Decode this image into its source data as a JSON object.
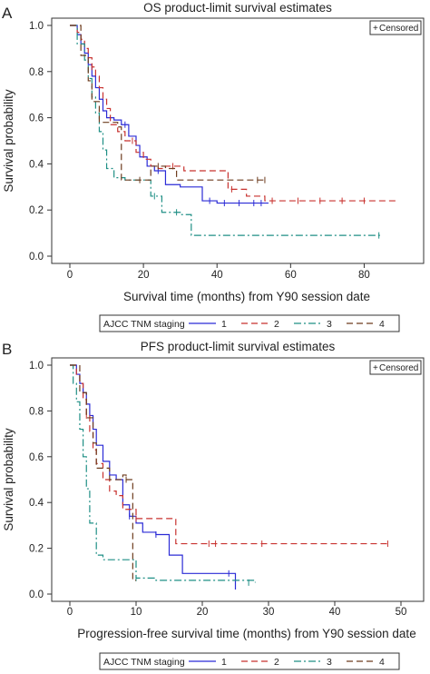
{
  "chart_data": [
    {
      "type": "line",
      "panel_label": "A",
      "title": "OS product-limit survival estimates",
      "xlabel": "Survival time (months) from Y90 session date",
      "ylabel": "Survival probability",
      "xlim": [
        0,
        90
      ],
      "ylim": [
        0,
        1
      ],
      "xticks": [
        "0",
        "20",
        "40",
        "60",
        "80"
      ],
      "yticks": [
        "0.0",
        "0.2",
        "0.4",
        "0.6",
        "0.8",
        "1.0"
      ],
      "censored_note": "Censored",
      "censored_marker": "+",
      "legend_title": "AJCC TNM staging",
      "legend_position": "bottom",
      "step": true,
      "series": [
        {
          "name": "1",
          "color": "#2b2bd6",
          "dash": "solid",
          "x": [
            0,
            2,
            3,
            4,
            5,
            6,
            7,
            8,
            9,
            10,
            12,
            14,
            16,
            18,
            19,
            21,
            23,
            26,
            30,
            36,
            40,
            54
          ],
          "y": [
            1.0,
            0.96,
            0.92,
            0.88,
            0.83,
            0.78,
            0.73,
            0.68,
            0.63,
            0.6,
            0.59,
            0.57,
            0.52,
            0.48,
            0.43,
            0.39,
            0.37,
            0.31,
            0.3,
            0.24,
            0.23,
            0.23
          ],
          "censored": [
            [
              15,
              0.57
            ],
            [
              24,
              0.37
            ],
            [
              38,
              0.24
            ],
            [
              42,
              0.23
            ],
            [
              46,
              0.23
            ],
            [
              50,
              0.23
            ],
            [
              52,
              0.23
            ]
          ]
        },
        {
          "name": "2",
          "color": "#c8322f",
          "dash": "long-dash",
          "x": [
            0,
            2,
            3,
            4,
            5,
            6,
            7,
            8,
            9,
            10,
            11,
            13,
            15,
            18,
            20,
            22,
            24,
            26,
            31,
            43,
            48,
            53,
            89
          ],
          "y": [
            1.0,
            0.97,
            0.94,
            0.9,
            0.86,
            0.82,
            0.78,
            0.73,
            0.68,
            0.64,
            0.57,
            0.54,
            0.5,
            0.45,
            0.42,
            0.39,
            0.38,
            0.39,
            0.37,
            0.29,
            0.26,
            0.24,
            0.24
          ],
          "censored": [
            [
              6,
              0.82
            ],
            [
              17,
              0.5
            ],
            [
              28,
              0.39
            ],
            [
              44,
              0.29
            ],
            [
              55,
              0.24
            ],
            [
              62,
              0.24
            ],
            [
              68,
              0.24
            ],
            [
              74,
              0.24
            ],
            [
              80,
              0.24
            ]
          ]
        },
        {
          "name": "3",
          "color": "#1f8f85",
          "dash": "dash-dot",
          "x": [
            0,
            2,
            4,
            5,
            6,
            7,
            8,
            9,
            10,
            12,
            15,
            22,
            25,
            30,
            33,
            85
          ],
          "y": [
            1.0,
            0.92,
            0.85,
            0.77,
            0.69,
            0.62,
            0.54,
            0.46,
            0.38,
            0.34,
            0.33,
            0.26,
            0.19,
            0.18,
            0.09,
            0.09
          ],
          "censored": [
            [
              23,
              0.26
            ],
            [
              29,
              0.19
            ],
            [
              84,
              0.09
            ]
          ]
        },
        {
          "name": "4",
          "color": "#6e3c1e",
          "dash": "long-dash",
          "x": [
            0,
            3,
            5,
            6,
            8,
            10,
            13,
            14,
            18,
            22,
            25,
            26,
            29,
            53
          ],
          "y": [
            1.0,
            0.87,
            0.76,
            0.67,
            0.58,
            0.58,
            0.56,
            0.33,
            0.33,
            0.39,
            0.39,
            0.38,
            0.33,
            0.33
          ],
          "censored": [
            [
              19,
              0.33
            ],
            [
              24,
              0.39
            ],
            [
              51,
              0.33
            ],
            [
              53,
              0.33
            ]
          ]
        }
      ]
    },
    {
      "type": "line",
      "panel_label": "B",
      "title": "PFS product-limit survival estimates",
      "xlabel": "Progression-free survival time (months) from Y90 session date",
      "ylabel": "Survival probability",
      "xlim": [
        0,
        50
      ],
      "ylim": [
        0,
        1
      ],
      "xticks": [
        "0",
        "10",
        "20",
        "30",
        "40",
        "50"
      ],
      "yticks": [
        "0.0",
        "0.2",
        "0.4",
        "0.6",
        "0.8",
        "1.0"
      ],
      "censored_note": "Censored",
      "censored_marker": "+",
      "legend_title": "AJCC TNM staging",
      "legend_position": "bottom",
      "step": true,
      "series": [
        {
          "name": "1",
          "color": "#2b2bd6",
          "dash": "solid",
          "x": [
            0,
            1,
            1.5,
            2,
            2.5,
            3,
            3.5,
            4,
            5,
            6,
            7,
            8,
            9,
            10,
            11,
            13,
            15,
            17,
            25
          ],
          "y": [
            1.0,
            0.96,
            0.92,
            0.88,
            0.83,
            0.78,
            0.72,
            0.65,
            0.58,
            0.52,
            0.5,
            0.39,
            0.34,
            0.31,
            0.27,
            0.26,
            0.17,
            0.09,
            0.02
          ],
          "censored": [
            [
              2,
              0.88
            ],
            [
              9,
              0.34
            ],
            [
              13,
              0.26
            ],
            [
              24,
              0.09
            ]
          ]
        },
        {
          "name": "2",
          "color": "#c8322f",
          "dash": "long-dash",
          "x": [
            0,
            1,
            1.5,
            2,
            2.5,
            3,
            3.5,
            4,
            5,
            6,
            7,
            8,
            10,
            11,
            16,
            48
          ],
          "y": [
            1.0,
            0.96,
            0.92,
            0.85,
            0.78,
            0.71,
            0.63,
            0.57,
            0.5,
            0.45,
            0.43,
            0.37,
            0.33,
            0.33,
            0.22,
            0.22
          ],
          "censored": [
            [
              2.5,
              0.78
            ],
            [
              10,
              0.33
            ],
            [
              21,
              0.22
            ],
            [
              22,
              0.22
            ],
            [
              29,
              0.22
            ],
            [
              48,
              0.22
            ]
          ]
        },
        {
          "name": "3",
          "color": "#1f8f85",
          "dash": "dash-dot",
          "x": [
            0,
            0.5,
            1,
            1.5,
            2,
            2.5,
            3,
            4,
            5,
            7,
            10,
            13,
            28
          ],
          "y": [
            1.0,
            0.92,
            0.84,
            0.72,
            0.6,
            0.46,
            0.31,
            0.17,
            0.15,
            0.15,
            0.07,
            0.06,
            0.05
          ],
          "censored": [
            [
              10,
              0.07
            ],
            [
              27,
              0.05
            ]
          ]
        },
        {
          "name": "4",
          "color": "#6e3c1e",
          "dash": "long-dash",
          "x": [
            0,
            1.5,
            2.5,
            3.5,
            4,
            5,
            6,
            8,
            8.5,
            9.5,
            10
          ],
          "y": [
            1.0,
            0.88,
            0.77,
            0.66,
            0.55,
            0.55,
            0.5,
            0.52,
            0.5,
            0.06,
            0.06
          ],
          "censored": [
            [
              8.5,
              0.5
            ]
          ]
        }
      ]
    }
  ]
}
